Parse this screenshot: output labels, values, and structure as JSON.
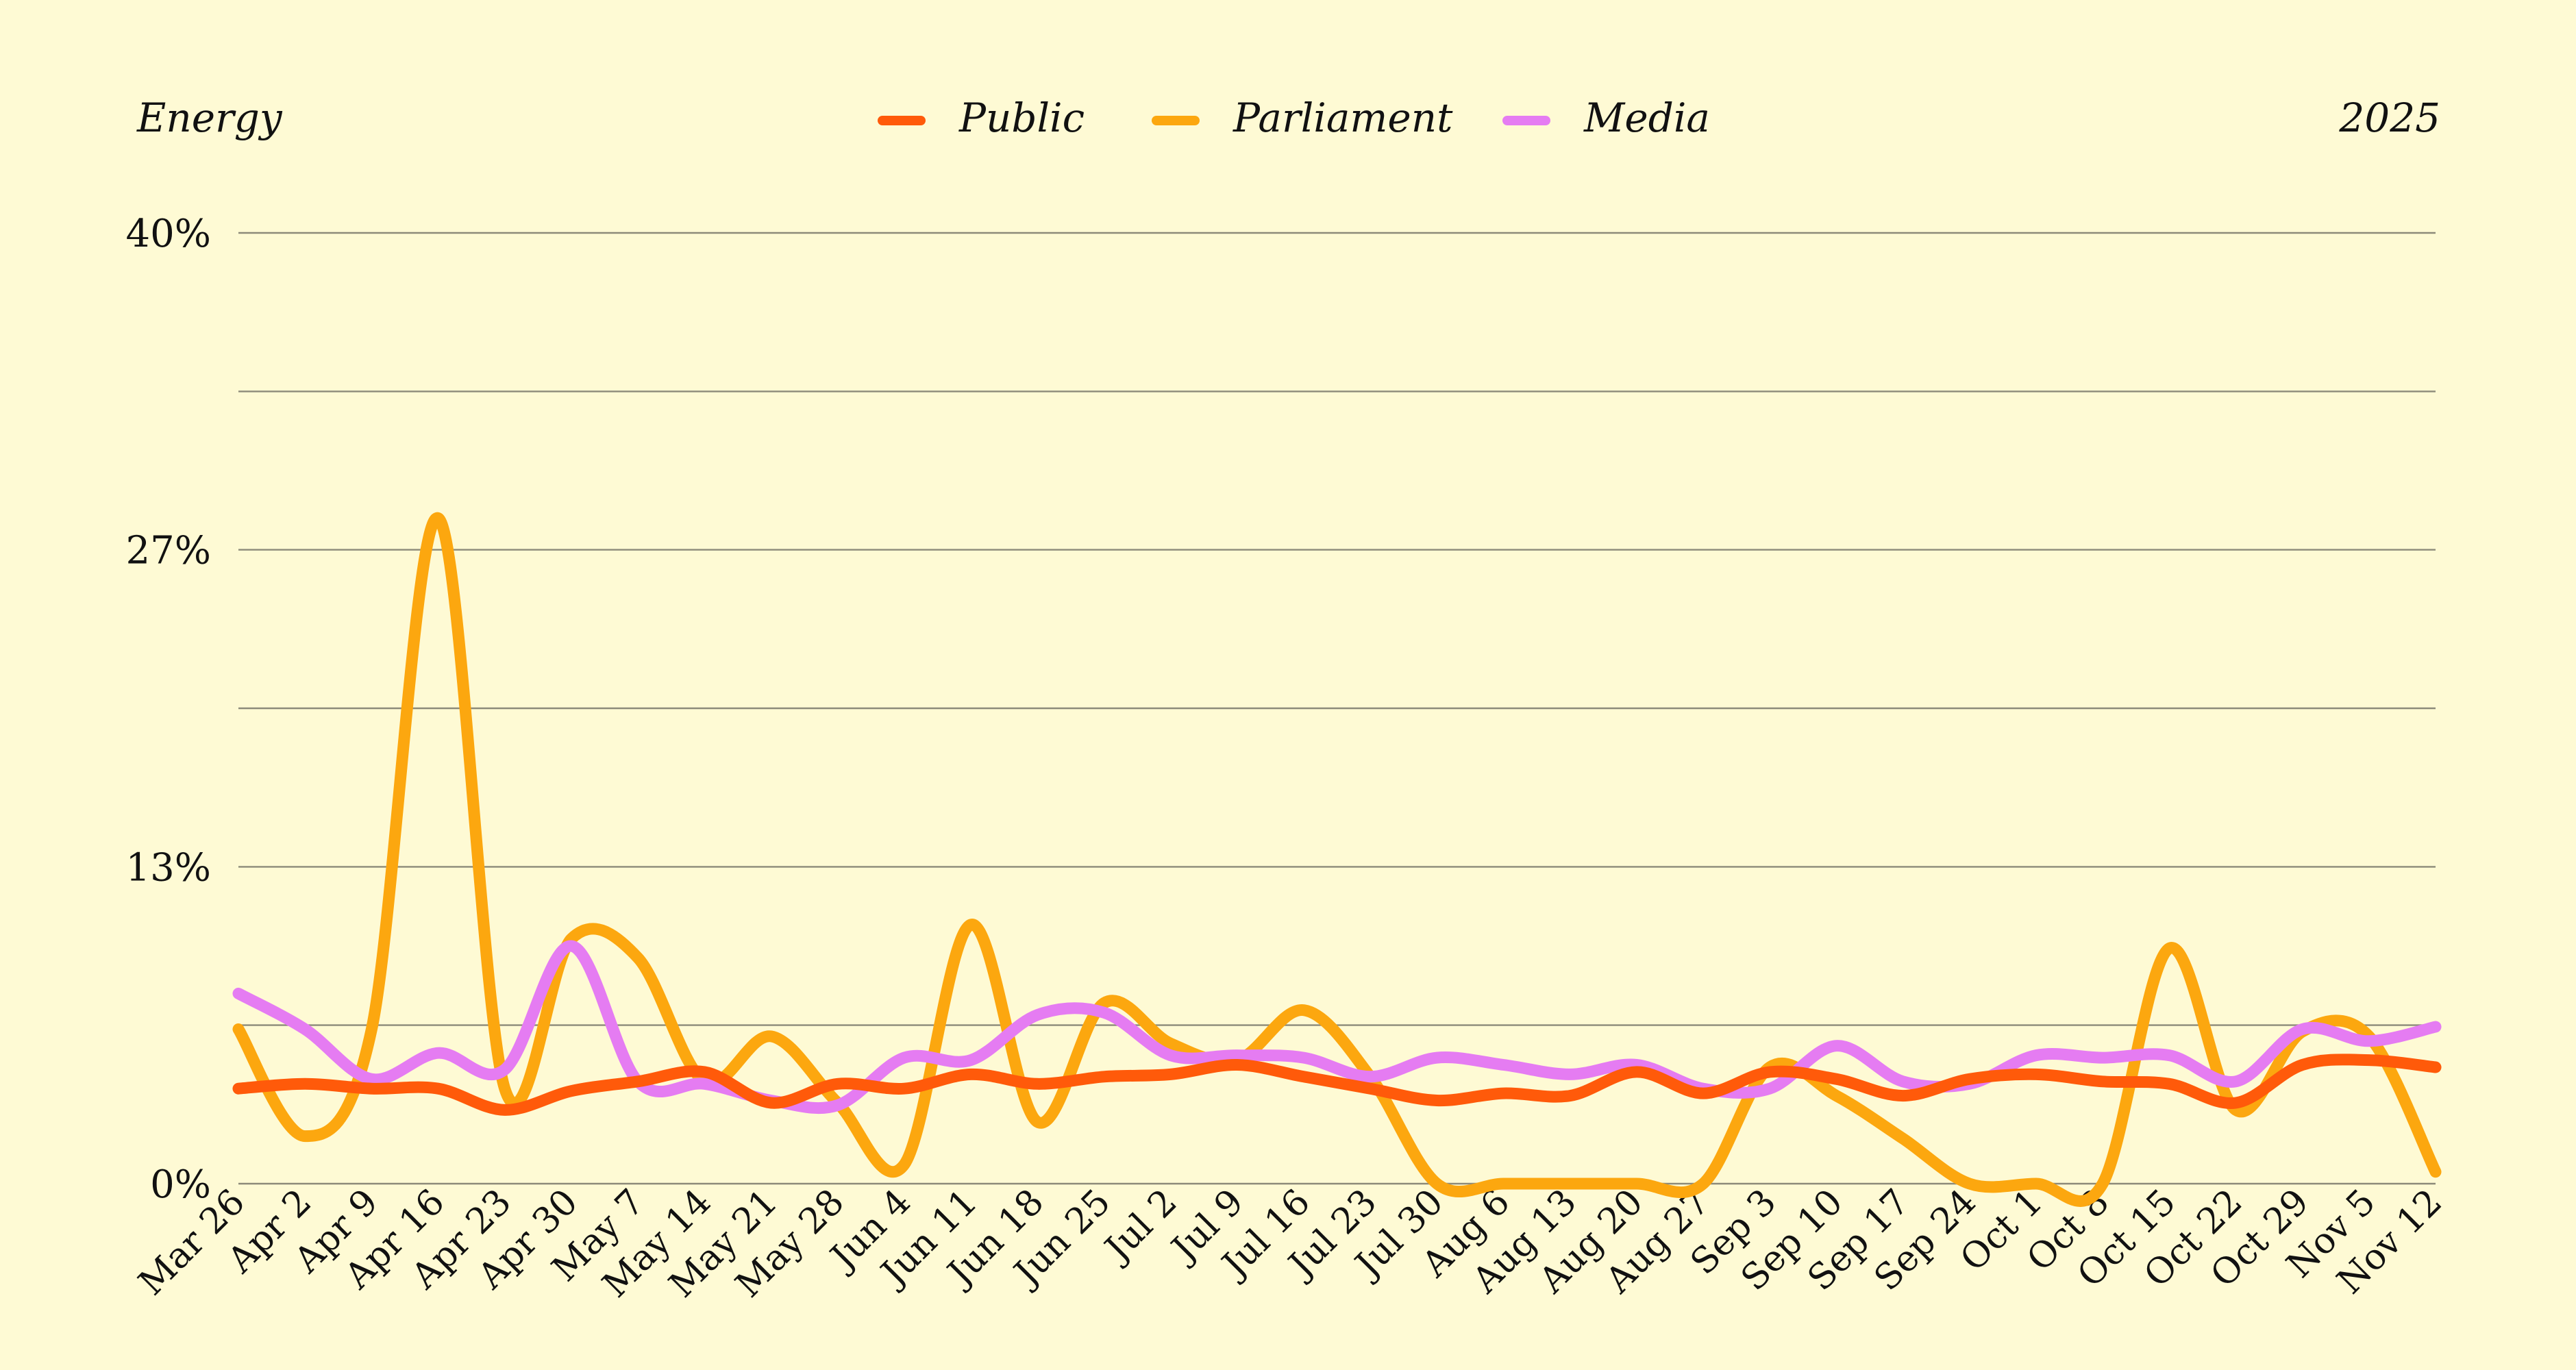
{
  "header": {
    "left_label": "Energy",
    "right_label": "2025"
  },
  "chart_data": {
    "type": "line",
    "title": "",
    "xlabel": "",
    "ylabel": "",
    "ylim": [
      0,
      40
    ],
    "y_ticks": [
      {
        "value": 0,
        "label": "0%"
      },
      {
        "value": 6.67,
        "label": ""
      },
      {
        "value": 13.33,
        "label": "13%"
      },
      {
        "value": 20,
        "label": ""
      },
      {
        "value": 26.67,
        "label": "27%"
      },
      {
        "value": 33.33,
        "label": ""
      },
      {
        "value": 40,
        "label": "40%"
      }
    ],
    "grid": true,
    "legend_position": "top-center",
    "categories": [
      "Mar 26",
      "Apr 2",
      "Apr 9",
      "Apr 16",
      "Apr 23",
      "Apr 30",
      "May 7",
      "May 14",
      "May 21",
      "May 28",
      "Jun 4",
      "Jun 11",
      "Jun 18",
      "Jun 25",
      "Jul 2",
      "Jul 9",
      "Jul 16",
      "Jul 23",
      "Jul 30",
      "Aug 6",
      "Aug 13",
      "Aug 20",
      "Aug 27",
      "Sep 3",
      "Sep 10",
      "Sep 17",
      "Sep 24",
      "Oct 1",
      "Oct 8",
      "Oct 15",
      "Oct 22",
      "Oct 29",
      "Nov 5",
      "Nov 12"
    ],
    "series": [
      {
        "name": "Public",
        "color": "#ff5a0a",
        "values": [
          4.0,
          4.2,
          4.0,
          4.0,
          3.1,
          3.9,
          4.3,
          4.7,
          3.4,
          4.2,
          4.0,
          4.6,
          4.2,
          4.5,
          4.6,
          5.0,
          4.5,
          4.0,
          3.5,
          3.8,
          3.7,
          4.7,
          3.8,
          4.7,
          4.4,
          3.7,
          4.4,
          4.6,
          4.3,
          4.2,
          3.4,
          5.0,
          5.2,
          4.9
        ]
      },
      {
        "name": "Parliament",
        "color": "#fca70f",
        "values": [
          6.5,
          2.0,
          6.5,
          28.0,
          4.0,
          10.3,
          9.5,
          4.3,
          6.2,
          3.4,
          0.8,
          10.9,
          2.6,
          7.6,
          5.9,
          5.2,
          7.3,
          4.5,
          0.0,
          0.0,
          0.0,
          0.0,
          0.0,
          4.9,
          3.7,
          1.9,
          0.0,
          0.0,
          0.0,
          9.9,
          3.1,
          6.4,
          6.2,
          0.5
        ]
      },
      {
        "name": "Media",
        "color": "#e57cf2",
        "values": [
          8.0,
          6.5,
          4.4,
          5.5,
          4.8,
          10.0,
          4.3,
          4.2,
          3.5,
          3.3,
          5.3,
          5.2,
          7.1,
          7.2,
          5.4,
          5.4,
          5.3,
          4.5,
          5.3,
          5.0,
          4.6,
          5.0,
          4.0,
          4.0,
          5.8,
          4.3,
          4.2,
          5.4,
          5.3,
          5.4,
          4.3,
          6.5,
          6.0,
          6.6
        ]
      }
    ]
  }
}
